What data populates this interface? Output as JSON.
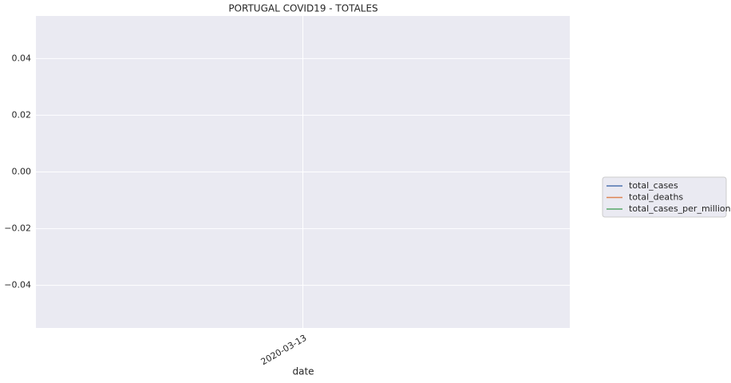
{
  "chart_data": {
    "type": "line",
    "title": "PORTUGAL COVID19 - TOTALES",
    "xlabel": "date",
    "x": [
      "2020-03-13"
    ],
    "series": [
      {
        "name": "total_cases",
        "color": "#4c72b0",
        "values": [
          null
        ]
      },
      {
        "name": "total_deaths",
        "color": "#dd8452",
        "values": [
          null
        ]
      },
      {
        "name": "total_cases_per_million",
        "color": "#55a868",
        "values": [
          null
        ]
      }
    ],
    "ylim": [
      -0.055,
      0.055
    ],
    "yticks": [
      {
        "value": -0.04,
        "label": "−0.04"
      },
      {
        "value": -0.02,
        "label": "−0.02"
      },
      {
        "value": 0,
        "label": "0.00"
      },
      0.02,
      0.04
    ],
    "grid": true,
    "legend": "right"
  }
}
